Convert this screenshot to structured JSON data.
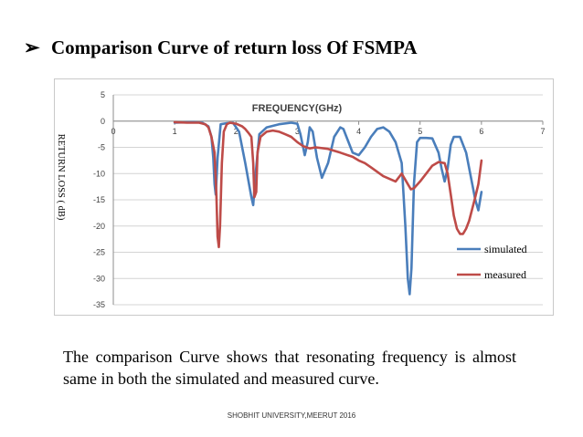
{
  "slide": {
    "bullet_glyph": "➢",
    "title": "Comparison Curve of return loss Of FSMPA",
    "caption": "The comparison Curve shows that resonating frequency is almost same in both the simulated and measured curve.",
    "footer": "SHOBHIT UNIVERSITY,MEERUT 2016"
  },
  "chart_data": {
    "type": "line",
    "title": "FREQUENCY(GHz)",
    "xlabel": "",
    "ylabel": "RETURN LOSS ( dB)",
    "xlim": [
      0,
      7
    ],
    "ylim": [
      -35,
      5
    ],
    "x_ticks": [
      "0",
      "1",
      "2",
      "3",
      "4",
      "5",
      "6",
      "7"
    ],
    "y_ticks": [
      "5",
      "0",
      "-5",
      "-10",
      "-15",
      "-20",
      "-25",
      "-30",
      "-35"
    ],
    "x_axis_at_y": 0,
    "grid": true,
    "legend_position": "bottom-right",
    "series": [
      {
        "name": "simulated",
        "color": "#4a7ebb",
        "x": [
          1.0,
          1.3,
          1.45,
          1.55,
          1.6,
          1.63,
          1.65,
          1.67,
          1.7,
          1.75,
          1.85,
          1.95,
          2.05,
          2.15,
          2.25,
          2.28,
          2.32,
          2.38,
          2.5,
          2.7,
          2.9,
          3.0,
          3.05,
          3.12,
          3.17,
          3.2,
          3.25,
          3.32,
          3.4,
          3.5,
          3.6,
          3.7,
          3.75,
          3.85,
          3.9,
          4.0,
          4.1,
          4.2,
          4.3,
          4.4,
          4.5,
          4.6,
          4.7,
          4.76,
          4.8,
          4.83,
          4.86,
          4.9,
          4.95,
          5.0,
          5.1,
          5.2,
          5.3,
          5.35,
          5.4,
          5.45,
          5.5,
          5.55,
          5.65,
          5.75,
          5.85,
          5.9,
          5.95,
          6.0
        ],
        "y": [
          -0.3,
          -0.2,
          -0.3,
          -1.0,
          -3.0,
          -7.0,
          -12.0,
          -14.0,
          -7.0,
          -0.6,
          -0.4,
          -0.3,
          -2.0,
          -8.0,
          -14.5,
          -16.0,
          -10.0,
          -2.5,
          -1.2,
          -0.6,
          -0.3,
          -0.5,
          -2.5,
          -6.5,
          -4.0,
          -1.2,
          -2.0,
          -7.0,
          -10.8,
          -8.0,
          -3.0,
          -1.2,
          -1.5,
          -4.5,
          -6.0,
          -6.5,
          -5.0,
          -3.0,
          -1.5,
          -1.2,
          -2.0,
          -4.0,
          -8.0,
          -20.0,
          -30.0,
          -33.0,
          -28.0,
          -12.0,
          -4.0,
          -3.2,
          -3.2,
          -3.3,
          -6.0,
          -9.0,
          -11.5,
          -9.0,
          -4.5,
          -3.0,
          -3.0,
          -6.0,
          -12.0,
          -15.0,
          -17.0,
          -13.5
        ]
      },
      {
        "name": "measured",
        "color": "#be4b48",
        "x": [
          1.0,
          1.2,
          1.4,
          1.5,
          1.55,
          1.6,
          1.65,
          1.68,
          1.7,
          1.72,
          1.74,
          1.77,
          1.8,
          1.85,
          1.9,
          2.0,
          2.1,
          2.15,
          2.2,
          2.25,
          2.28,
          2.3,
          2.33,
          2.35,
          2.4,
          2.5,
          2.6,
          2.7,
          2.8,
          2.9,
          3.0,
          3.1,
          3.2,
          3.3,
          3.5,
          3.7,
          3.9,
          4.0,
          4.1,
          4.2,
          4.4,
          4.6,
          4.7,
          4.8,
          4.85,
          4.9,
          5.0,
          5.1,
          5.2,
          5.3,
          5.4,
          5.45,
          5.5,
          5.55,
          5.6,
          5.65,
          5.7,
          5.75,
          5.8,
          5.9,
          5.95,
          6.0
        ],
        "y": [
          -0.2,
          -0.3,
          -0.3,
          -0.6,
          -1.2,
          -3.0,
          -6.0,
          -14.0,
          -22.0,
          -24.0,
          -20.0,
          -8.0,
          -2.0,
          -0.6,
          -0.3,
          -0.5,
          -1.0,
          -1.5,
          -2.2,
          -3.0,
          -8.0,
          -14.5,
          -13.5,
          -6.0,
          -3.0,
          -2.0,
          -1.8,
          -2.0,
          -2.5,
          -3.0,
          -4.0,
          -4.8,
          -5.2,
          -5.0,
          -5.3,
          -6.0,
          -6.8,
          -7.5,
          -8.0,
          -8.8,
          -10.5,
          -11.5,
          -10.0,
          -12.0,
          -13.0,
          -12.8,
          -11.5,
          -10.0,
          -8.5,
          -7.8,
          -8.0,
          -10.0,
          -14.0,
          -18.0,
          -20.5,
          -21.5,
          -21.5,
          -20.5,
          -19.0,
          -14.5,
          -12.0,
          -7.5
        ]
      }
    ]
  }
}
